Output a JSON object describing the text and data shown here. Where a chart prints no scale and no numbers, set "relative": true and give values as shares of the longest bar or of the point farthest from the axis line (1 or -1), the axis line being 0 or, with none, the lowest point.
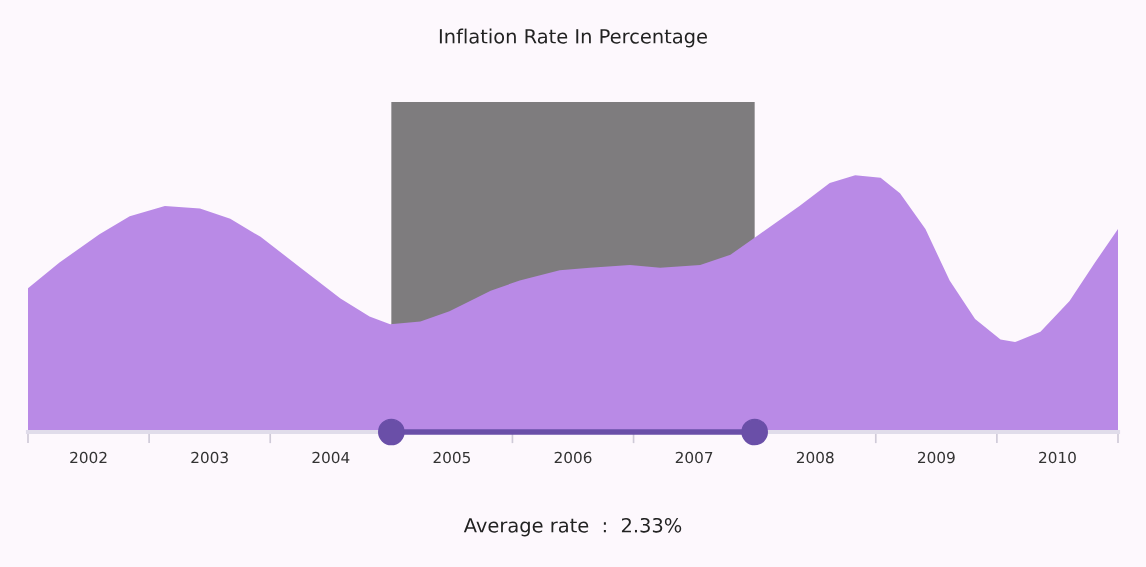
{
  "chart_data": {
    "type": "area",
    "title": "Inflation Rate In Percentage",
    "relative": true,
    "x": [
      2002.0,
      2002.26,
      2002.59,
      2002.84,
      2003.13,
      2003.42,
      2003.67,
      2003.92,
      2004.25,
      2004.58,
      2004.82,
      2004.99,
      2005.24,
      2005.48,
      2005.82,
      2006.06,
      2006.39,
      2006.64,
      2006.97,
      2007.22,
      2007.55,
      2007.8,
      2008.04,
      2008.37,
      2008.62,
      2008.83,
      2009.04,
      2009.2,
      2009.41,
      2009.61,
      2009.82,
      2010.03,
      2010.15,
      2010.36,
      2010.6,
      2010.81,
      2011.0
    ],
    "series": [
      {
        "color": "#b98ae6",
        "values": [
          0.56,
          0.66,
          0.77,
          0.84,
          0.88,
          0.87,
          0.83,
          0.76,
          0.64,
          0.52,
          0.45,
          0.42,
          0.43,
          0.47,
          0.55,
          0.59,
          0.63,
          0.64,
          0.65,
          0.64,
          0.65,
          0.69,
          0.77,
          0.88,
          0.97,
          1.0,
          0.99,
          0.93,
          0.79,
          0.59,
          0.44,
          0.36,
          0.35,
          0.39,
          0.51,
          0.66,
          0.79
        ]
      }
    ],
    "xlim": [
      2002,
      2011
    ],
    "xticks": [
      {
        "value": 2002,
        "label": null
      },
      {
        "value": 2002.5,
        "label": "2002"
      },
      {
        "value": 2003,
        "label": null
      },
      {
        "value": 2003.5,
        "label": "2003"
      },
      {
        "value": 2004,
        "label": null
      },
      {
        "value": 2004.5,
        "label": "2004"
      },
      {
        "value": 2005,
        "label": null
      },
      {
        "value": 2005.5,
        "label": "2005"
      },
      {
        "value": 2006,
        "label": null
      },
      {
        "value": 2006.5,
        "label": "2006"
      },
      {
        "value": 2007,
        "label": null
      },
      {
        "value": 2007.5,
        "label": "2007"
      },
      {
        "value": 2008,
        "label": null
      },
      {
        "value": 2008.5,
        "label": "2008"
      },
      {
        "value": 2009,
        "label": null
      },
      {
        "value": 2009.5,
        "label": "2009"
      },
      {
        "value": 2010,
        "label": null
      },
      {
        "value": 2010.5,
        "label": "2010"
      },
      {
        "value": 2011,
        "label": null
      }
    ],
    "bands": [
      {
        "axis": "x",
        "from": 2005,
        "to": 2008,
        "color": "#000000"
      }
    ],
    "annotations": [
      "Average rate  :  2.33%"
    ]
  }
}
